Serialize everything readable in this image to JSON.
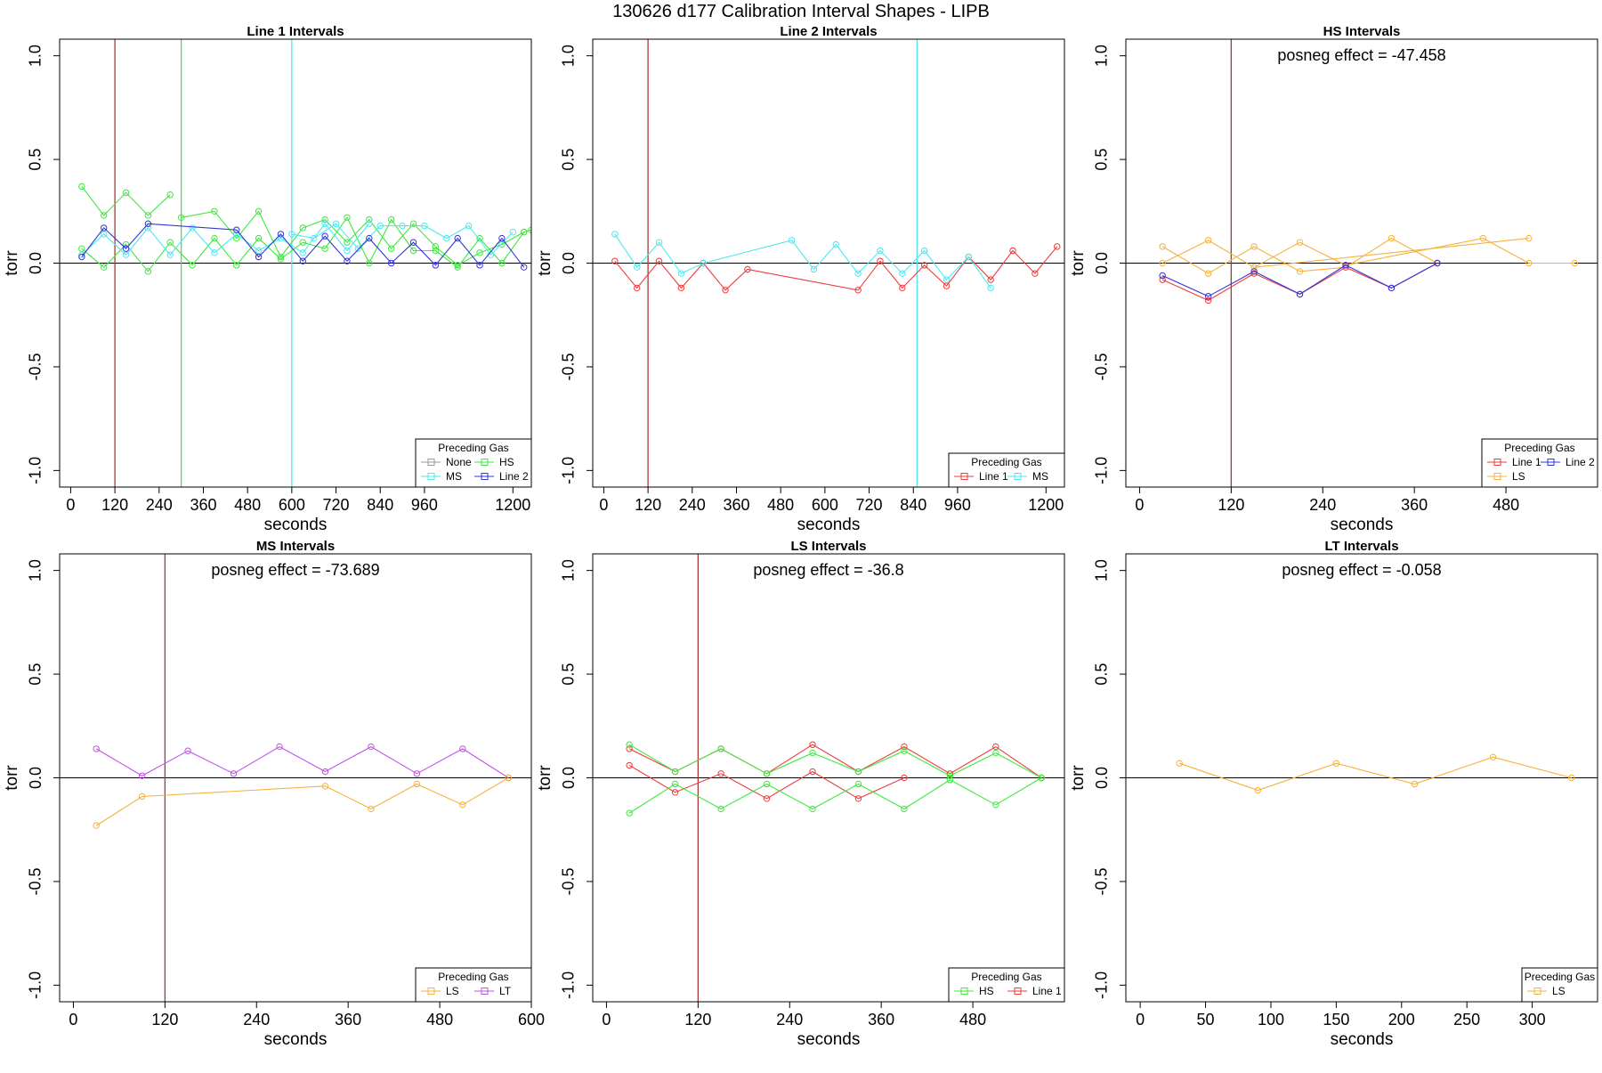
{
  "figure_title": "130626   d177   Calibration Interval Shapes - LIPB",
  "colors": {
    "None": "#9a9a9a",
    "MS": "#4ee8ee",
    "HS": "#3ee83e",
    "Line 2": "#3434d8",
    "Line 1": "#ee3c3c",
    "LS": "#f5b23c",
    "LT": "#c152e8",
    "marker_line": "#a83a3a"
  },
  "chart_data": [
    {
      "type": "line",
      "title": "Line 1 Intervals",
      "xlabel": "seconds",
      "ylabel": "torr",
      "xlim": [
        -30,
        1250
      ],
      "ylim": [
        -1.08,
        1.08
      ],
      "xticks": [
        0,
        120,
        240,
        360,
        480,
        600,
        720,
        840,
        960,
        1200
      ],
      "yticks": [
        -1.0,
        -0.5,
        0.0,
        0.5,
        1.0
      ],
      "vlines": [
        {
          "x": 120,
          "color": "marker_line"
        },
        {
          "x": 300,
          "color": "HS"
        },
        {
          "x": 600,
          "color": "MS"
        }
      ],
      "annotation": "",
      "legend": {
        "title": "Preceding Gas",
        "entries": [
          "None",
          "HS",
          "MS",
          "Line 2"
        ],
        "columns": 2
      },
      "series": [
        {
          "name": "HS",
          "x": [
            30,
            90,
            150,
            210,
            270
          ],
          "y": [
            0.37,
            0.23,
            0.34,
            0.23,
            0.33
          ]
        },
        {
          "name": "HS",
          "x": [
            30,
            90,
            150,
            210,
            270,
            330,
            390,
            450,
            510,
            570,
            630,
            690,
            750,
            810,
            870,
            930,
            990,
            1050,
            1110,
            1170,
            1230,
            1250
          ],
          "y": [
            0.07,
            -0.02,
            0.09,
            -0.04,
            0.1,
            -0.01,
            0.12,
            -0.01,
            0.12,
            0.02,
            0.1,
            0.07,
            0.22,
            0.0,
            0.21,
            0.06,
            0.06,
            -0.02,
            0.12,
            0.0,
            0.15,
            0.16
          ]
        },
        {
          "name": "HS",
          "x": [
            300,
            390,
            450,
            510,
            570,
            630,
            690,
            750,
            810,
            870,
            930,
            990,
            1050,
            1110,
            1170,
            1230
          ],
          "y": [
            0.22,
            0.25,
            0.12,
            0.25,
            0.03,
            0.17,
            0.21,
            0.1,
            0.21,
            0.07,
            0.19,
            0.08,
            -0.01,
            0.05,
            0.09,
            0.15
          ]
        },
        {
          "name": "MS",
          "x": [
            30,
            90,
            150,
            210,
            270,
            330,
            390,
            450,
            510,
            570,
            630,
            690,
            750,
            810
          ],
          "y": [
            0.04,
            0.14,
            0.04,
            0.17,
            0.04,
            0.17,
            0.05,
            0.14,
            0.06,
            0.12,
            0.05,
            0.19,
            0.06,
            0.19
          ]
        },
        {
          "name": "MS",
          "x": [
            600,
            660,
            720,
            780,
            840,
            900,
            960,
            1020,
            1080,
            1140,
            1200
          ],
          "y": [
            0.14,
            0.12,
            0.19,
            0.07,
            0.18,
            0.18,
            0.18,
            0.12,
            0.18,
            0.04,
            0.15
          ]
        },
        {
          "name": "Line 2",
          "x": [
            30,
            90,
            150,
            210,
            450,
            510,
            570,
            630,
            690,
            750,
            810,
            870,
            930,
            990,
            1050,
            1110,
            1170,
            1230
          ],
          "y": [
            0.03,
            0.17,
            0.07,
            0.19,
            0.16,
            0.03,
            0.14,
            0.01,
            0.13,
            0.01,
            0.12,
            0.0,
            0.1,
            -0.01,
            0.12,
            -0.01,
            0.12,
            -0.02
          ]
        }
      ]
    },
    {
      "type": "line",
      "title": "Line 2 Intervals",
      "xlabel": "seconds",
      "ylabel": "torr",
      "xlim": [
        -30,
        1250
      ],
      "ylim": [
        -1.08,
        1.08
      ],
      "xticks": [
        0,
        120,
        240,
        360,
        480,
        600,
        720,
        840,
        960,
        1200
      ],
      "yticks": [
        -1.0,
        -0.5,
        0.0,
        0.5,
        1.0
      ],
      "vlines": [
        {
          "x": 120,
          "color": "marker_line"
        },
        {
          "x": 850,
          "color": "MS"
        }
      ],
      "annotation": "",
      "legend": {
        "title": "Preceding Gas",
        "entries": [
          "Line 1",
          "MS"
        ],
        "columns": 2
      },
      "series": [
        {
          "name": "Line 1",
          "x": [
            30,
            90,
            150,
            210,
            270,
            330,
            390,
            690,
            750,
            810,
            870,
            930,
            990,
            1050,
            1110,
            1170,
            1230
          ],
          "y": [
            0.01,
            -0.12,
            0.01,
            -0.12,
            0.0,
            -0.13,
            -0.03,
            -0.13,
            0.01,
            -0.12,
            -0.01,
            -0.11,
            0.03,
            -0.08,
            0.06,
            -0.05,
            0.08
          ]
        },
        {
          "name": "MS",
          "x": [
            30,
            90,
            150,
            210,
            270,
            510,
            570,
            630,
            690,
            750,
            810,
            870,
            930,
            990,
            1050
          ],
          "y": [
            0.14,
            -0.02,
            0.1,
            -0.05,
            0.0,
            0.11,
            -0.03,
            0.09,
            -0.05,
            0.06,
            -0.05,
            0.06,
            -0.08,
            0.03,
            -0.12
          ]
        }
      ]
    },
    {
      "type": "line",
      "title": "HS Intervals",
      "xlabel": "seconds",
      "ylabel": "torr",
      "xlim": [
        -18,
        600
      ],
      "ylim": [
        -1.08,
        1.08
      ],
      "xticks": [
        0,
        120,
        240,
        360,
        480
      ],
      "yticks": [
        -1.0,
        -0.5,
        0.0,
        0.5,
        1.0
      ],
      "vlines": [
        {
          "x": 120,
          "color": "marker_line"
        }
      ],
      "annotation": "posneg effect = -47.458",
      "legend": {
        "title": "Preceding Gas",
        "entries": [
          "Line 1",
          "Line 2",
          "LS"
        ],
        "columns": 2
      },
      "series": [
        {
          "name": "LS",
          "x": [
            30,
            90,
            150,
            210,
            270,
            330,
            390
          ],
          "y": [
            0.08,
            -0.05,
            0.08,
            -0.04,
            -0.02,
            0.12,
            0.0
          ]
        },
        {
          "name": "LS",
          "x": [
            30,
            90,
            150,
            210,
            270,
            450,
            510,
            570
          ],
          "y": [
            0.0,
            0.11,
            -0.02,
            0.1,
            -0.01,
            0.12,
            0.0,
            0.0
          ]
        },
        {
          "name": "LS",
          "x": [
            150,
            510
          ],
          "y": [
            -0.02,
            0.12
          ]
        },
        {
          "name": "Line 1",
          "x": [
            30,
            90,
            150,
            210,
            270,
            330,
            390
          ],
          "y": [
            -0.08,
            -0.18,
            -0.05,
            -0.15,
            -0.02,
            -0.12,
            0.0
          ]
        },
        {
          "name": "Line 2",
          "x": [
            30,
            90,
            150,
            210,
            270,
            330,
            390
          ],
          "y": [
            -0.06,
            -0.16,
            -0.04,
            -0.15,
            -0.01,
            -0.12,
            0.0
          ]
        }
      ]
    },
    {
      "type": "line",
      "title": "MS Intervals",
      "xlabel": "seconds",
      "ylabel": "torr",
      "xlim": [
        -18,
        600
      ],
      "ylim": [
        -1.08,
        1.08
      ],
      "xticks": [
        0,
        120,
        240,
        360,
        480,
        600
      ],
      "yticks": [
        -1.0,
        -0.5,
        0.0,
        0.5,
        1.0
      ],
      "vlines": [
        {
          "x": 120,
          "color": "marker_line"
        }
      ],
      "annotation": "posneg effect = -73.689",
      "legend": {
        "title": "Preceding Gas",
        "entries": [
          "LS",
          "LT"
        ],
        "columns": 2
      },
      "series": [
        {
          "name": "LT",
          "x": [
            30,
            90,
            150,
            210,
            270,
            330,
            390,
            450,
            510,
            570
          ],
          "y": [
            0.14,
            0.01,
            0.13,
            0.02,
            0.15,
            0.03,
            0.15,
            0.02,
            0.14,
            0.0
          ]
        },
        {
          "name": "LS",
          "x": [
            30,
            90,
            330,
            390,
            450,
            510,
            570
          ],
          "y": [
            -0.23,
            -0.09,
            -0.04,
            -0.15,
            -0.03,
            -0.13,
            0.0
          ]
        }
      ]
    },
    {
      "type": "line",
      "title": "LS Intervals",
      "xlabel": "seconds",
      "ylabel": "torr",
      "xlim": [
        -18,
        600
      ],
      "ylim": [
        -1.08,
        1.08
      ],
      "xticks": [
        0,
        120,
        240,
        360,
        480
      ],
      "yticks": [
        -1.0,
        -0.5,
        0.0,
        0.5,
        1.0
      ],
      "vlines": [
        {
          "x": 120,
          "color": "marker_line"
        }
      ],
      "annotation": "posneg effect = -36.8",
      "legend": {
        "title": "Preceding Gas",
        "entries": [
          "HS",
          "Line 1"
        ],
        "columns": 2
      },
      "series": [
        {
          "name": "Line 1",
          "x": [
            30,
            90,
            150,
            210,
            270,
            330,
            390,
            450,
            510,
            570
          ],
          "y": [
            0.14,
            0.03,
            0.14,
            0.02,
            0.16,
            0.03,
            0.15,
            0.02,
            0.15,
            0.0
          ]
        },
        {
          "name": "Line 1",
          "x": [
            30,
            90,
            150,
            210,
            270,
            330,
            390
          ],
          "y": [
            0.06,
            -0.07,
            0.02,
            -0.1,
            0.03,
            -0.1,
            0.0
          ]
        },
        {
          "name": "HS",
          "x": [
            30,
            90,
            150,
            210,
            270,
            330,
            390,
            450,
            510,
            570
          ],
          "y": [
            0.16,
            0.03,
            0.14,
            0.02,
            0.12,
            0.03,
            0.13,
            0.01,
            0.12,
            0.0
          ]
        },
        {
          "name": "HS",
          "x": [
            30,
            90,
            150,
            210,
            270,
            330,
            390,
            450,
            510,
            570
          ],
          "y": [
            -0.17,
            -0.03,
            -0.15,
            -0.03,
            -0.15,
            -0.03,
            -0.15,
            -0.01,
            -0.13,
            0.0
          ]
        }
      ]
    },
    {
      "type": "line",
      "title": "LT Intervals",
      "xlabel": "seconds",
      "ylabel": "torr",
      "xlim": [
        -11,
        350
      ],
      "ylim": [
        -1.08,
        1.08
      ],
      "xticks": [
        0,
        50,
        100,
        150,
        200,
        250,
        300
      ],
      "yticks": [
        -1.0,
        -0.5,
        0.0,
        0.5,
        1.0
      ],
      "vlines": [],
      "annotation": "posneg effect = -0.058",
      "legend": {
        "title": "Preceding Gas",
        "entries": [
          "LS"
        ],
        "columns": 1
      },
      "series": [
        {
          "name": "LS",
          "x": [
            30,
            90,
            150,
            210,
            270,
            330
          ],
          "y": [
            0.07,
            -0.06,
            0.07,
            -0.03,
            0.1,
            0.0
          ]
        }
      ]
    }
  ]
}
